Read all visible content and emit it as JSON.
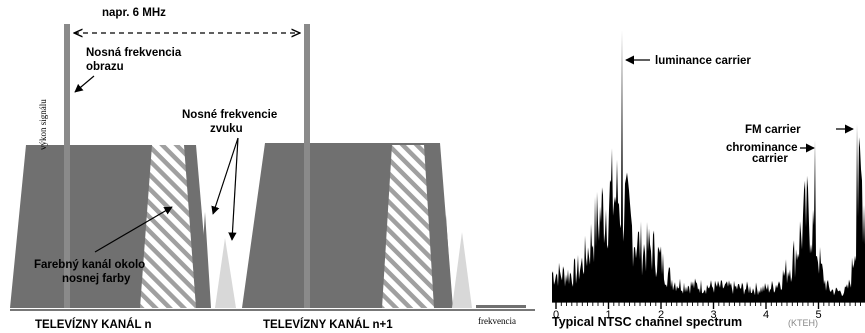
{
  "left_diagram": {
    "bandwidth_label": "napr. 6 MHz",
    "video_carrier_label_line1": "Nosná frekvencia",
    "video_carrier_label_line2": "obrazu",
    "y_axis_label": "výkon signálu",
    "sound_carrier_label_line1": "Nosné frekvencie",
    "sound_carrier_label_line2": "zvuku",
    "color_channel_label_line1": "Farebný kanál okolo",
    "color_channel_label_line2": "nosnej farby",
    "x_axis_label": "frekvencia",
    "channel_n_label": "TELEVÍZNY KANÁL n",
    "channel_n1_label": "TELEVÍZNY KANÁL n+1",
    "colors": {
      "channel_fill": "#707070",
      "carrier_bar": "#8a8a8a",
      "sound_light": "#d8d8d8",
      "hatch": "#a0a0a0"
    }
  },
  "right_chart": {
    "luminance_label": "luminance carrier",
    "chrominance_label_line1": "chrominance",
    "chrominance_label_line2": "carrier",
    "fm_label": "FM carrier",
    "caption": "Typical NTSC channel spectrum",
    "caption_credit": "(KTEH)",
    "tick_labels": [
      "0",
      "1",
      "2",
      "3",
      "4",
      "5",
      "6"
    ]
  }
}
